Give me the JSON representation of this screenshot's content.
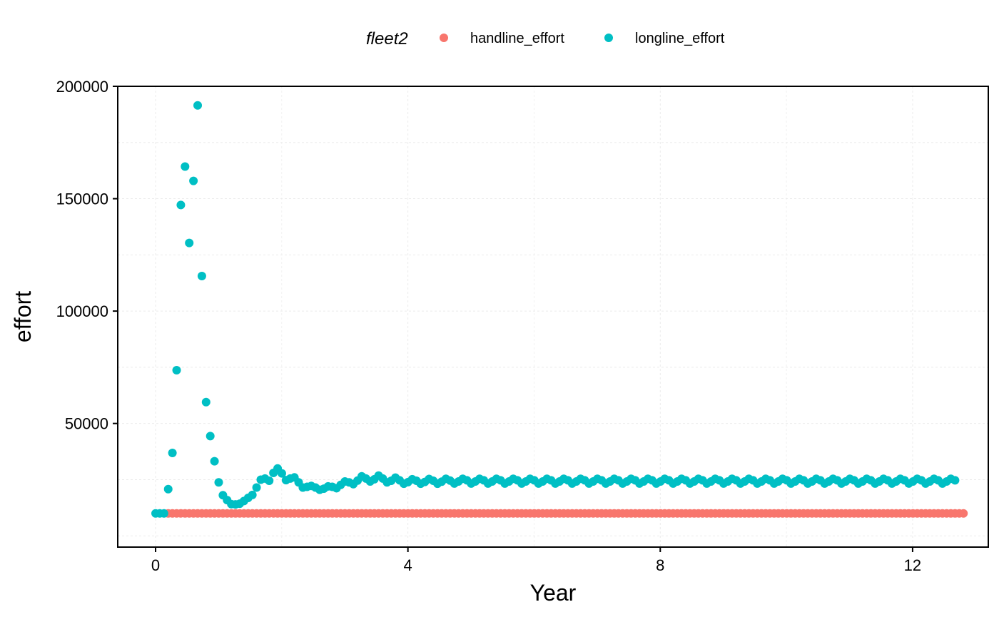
{
  "chart_data": {
    "type": "scatter",
    "xlabel": "Year",
    "ylabel": "effort",
    "xlim": [
      -0.6,
      13.2
    ],
    "ylim": [
      -5000,
      200000
    ],
    "x_ticks": [
      0,
      4,
      8,
      12
    ],
    "y_ticks": [
      50000,
      100000,
      150000,
      200000
    ],
    "y_tick_labels": [
      "50000",
      "100000",
      "150000",
      "200000"
    ],
    "grid": true,
    "legend": {
      "title": "fleet2",
      "position": "top"
    },
    "series": [
      {
        "name": "handline_effort",
        "color": "#F8766D",
        "x_start": 0.0,
        "x_step": 0.0667,
        "values": [
          10000,
          10000,
          10000,
          10000,
          10000,
          10000,
          10000,
          10000,
          10000,
          10000,
          10000,
          10000,
          10000,
          10000,
          10000,
          10000,
          10000,
          10000,
          10000,
          10000,
          10000,
          10000,
          10000,
          10000,
          10000,
          10000,
          10000,
          10000,
          10000,
          10000,
          10000,
          10000,
          10000,
          10000,
          10000,
          10000,
          10000,
          10000,
          10000,
          10000,
          10000,
          10000,
          10000,
          10000,
          10000,
          10000,
          10000,
          10000,
          10000,
          10000,
          10000,
          10000,
          10000,
          10000,
          10000,
          10000,
          10000,
          10000,
          10000,
          10000,
          10000,
          10000,
          10000,
          10000,
          10000,
          10000,
          10000,
          10000,
          10000,
          10000,
          10000,
          10000,
          10000,
          10000,
          10000,
          10000,
          10000,
          10000,
          10000,
          10000,
          10000,
          10000,
          10000,
          10000,
          10000,
          10000,
          10000,
          10000,
          10000,
          10000,
          10000,
          10000,
          10000,
          10000,
          10000,
          10000,
          10000,
          10000,
          10000,
          10000,
          10000,
          10000,
          10000,
          10000,
          10000,
          10000,
          10000,
          10000,
          10000,
          10000,
          10000,
          10000,
          10000,
          10000,
          10000,
          10000,
          10000,
          10000,
          10000,
          10000,
          10000,
          10000,
          10000,
          10000,
          10000,
          10000,
          10000,
          10000,
          10000,
          10000,
          10000,
          10000,
          10000,
          10000,
          10000,
          10000,
          10000,
          10000,
          10000,
          10000,
          10000,
          10000,
          10000,
          10000,
          10000,
          10000,
          10000,
          10000,
          10000,
          10000,
          10000,
          10000,
          10000,
          10000,
          10000,
          10000,
          10000,
          10000,
          10000,
          10000,
          10000,
          10000,
          10000,
          10000,
          10000,
          10000,
          10000,
          10000,
          10000,
          10000,
          10000,
          10000,
          10000,
          10000,
          10000,
          10000,
          10000,
          10000,
          10000,
          10000,
          10000,
          10000,
          10000,
          10000,
          10000,
          10000,
          10000,
          10000,
          10000,
          10000,
          10000,
          10000,
          10000
        ]
      },
      {
        "name": "longline_effort",
        "color": "#00BFC4",
        "x_start": 0.0,
        "x_step": 0.0667,
        "values": [
          10000,
          10000,
          10000,
          20800,
          36900,
          73700,
          147200,
          164300,
          130300,
          157900,
          191500,
          115600,
          59500,
          44400,
          33200,
          23800,
          18100,
          15900,
          14100,
          14000,
          14300,
          15500,
          16900,
          18200,
          21500,
          25000,
          25500,
          24500,
          28000,
          30000,
          27800,
          24800,
          25500,
          26000,
          23800,
          21500,
          21800,
          22200,
          21500,
          20500,
          21000,
          22000,
          21800,
          21200,
          22700,
          24200,
          23800,
          23000,
          24600,
          26500,
          25500,
          24200,
          25200,
          26800,
          25500,
          23800,
          24500,
          25900,
          24700,
          23200,
          23900,
          25200,
          24500,
          23200,
          24000,
          25300,
          24500,
          23200,
          24100,
          25400,
          24600,
          23300,
          24200,
          25400,
          24700,
          23300,
          24200,
          25400,
          24700,
          23300,
          24200,
          25400,
          24700,
          23300,
          24200,
          25400,
          24700,
          23300,
          24200,
          25400,
          24700,
          23300,
          24200,
          25400,
          24700,
          23300,
          24200,
          25400,
          24700,
          23300,
          24200,
          25400,
          24700,
          23300,
          24200,
          25400,
          24700,
          23300,
          24200,
          25400,
          24700,
          23300,
          24200,
          25400,
          24700,
          23300,
          24200,
          25400,
          24700,
          23300,
          24200,
          25400,
          24700,
          23300,
          24200,
          25400,
          24700,
          23300,
          24200,
          25400,
          24700,
          23300,
          24200,
          25400,
          24700,
          23300,
          24200,
          25400,
          24700,
          23300,
          24200,
          25400,
          24700,
          23300,
          24200,
          25400,
          24700,
          23300,
          24200,
          25400,
          24700,
          23300,
          24200,
          25400,
          24700,
          23300,
          24200,
          25400,
          24700,
          23300,
          24200,
          25400,
          24700,
          23300,
          24200,
          25400,
          24700,
          23300,
          24200,
          25400,
          24700,
          23300,
          24200,
          25400,
          24700,
          23300,
          24200,
          25400,
          24700,
          23300,
          24200,
          25400,
          24700,
          23300,
          24200,
          25400,
          24700,
          23300,
          24200,
          25400,
          24700
        ]
      }
    ]
  }
}
